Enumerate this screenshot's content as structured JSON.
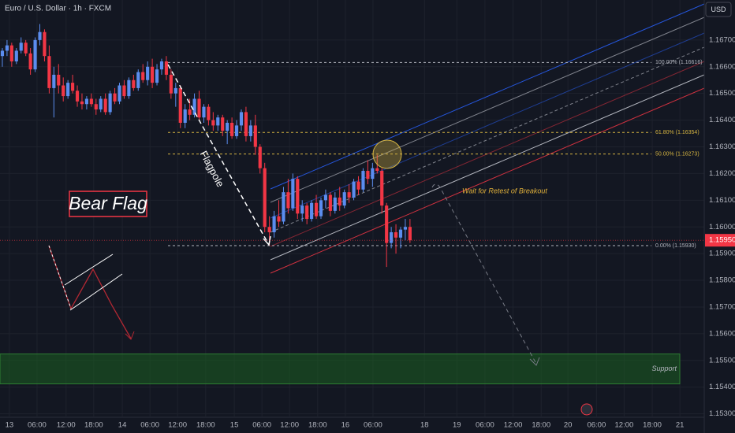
{
  "chart_data": {
    "type": "candlestick",
    "title": "Euro / U.S. Dollar · 1h · FXCM",
    "currency": "USD",
    "up_color": "#5b8def",
    "down_color": "#f23645",
    "grid": true,
    "ylim": [
      1.1529,
      1.1685
    ],
    "yticks": [
      {
        "value": 1.167,
        "label": "1.16700"
      },
      {
        "value": 1.166,
        "label": "1.16600"
      },
      {
        "value": 1.165,
        "label": "1.16500"
      },
      {
        "value": 1.164,
        "label": "1.16400"
      },
      {
        "value": 1.163,
        "label": "1.16300"
      },
      {
        "value": 1.162,
        "label": "1.16200"
      },
      {
        "value": 1.161,
        "label": "1.16100"
      },
      {
        "value": 1.16,
        "label": "1.16000"
      },
      {
        "value": 1.159,
        "label": "1.15900"
      },
      {
        "value": 1.158,
        "label": "1.15800"
      },
      {
        "value": 1.157,
        "label": "1.15700"
      },
      {
        "value": 1.156,
        "label": "1.15600"
      },
      {
        "value": 1.155,
        "label": "1.15500"
      },
      {
        "value": 1.154,
        "label": "1.15400"
      },
      {
        "value": 1.153,
        "label": "1.15300"
      }
    ],
    "xlim": [
      -0.5,
      149.8
    ],
    "xticks": [
      {
        "value": 1.5,
        "label": "13"
      },
      {
        "value": 7.4,
        "label": "06:00"
      },
      {
        "value": 13.6,
        "label": "12:00"
      },
      {
        "value": 19.5,
        "label": "18:00"
      },
      {
        "value": 25.6,
        "label": "14"
      },
      {
        "value": 31.5,
        "label": "06:00"
      },
      {
        "value": 37.4,
        "label": "12:00"
      },
      {
        "value": 43.4,
        "label": "18:00"
      },
      {
        "value": 49.5,
        "label": "15"
      },
      {
        "value": 55.4,
        "label": "06:00"
      },
      {
        "value": 61.3,
        "label": "12:00"
      },
      {
        "value": 67.3,
        "label": "18:00"
      },
      {
        "value": 73.2,
        "label": "16"
      },
      {
        "value": 79.1,
        "label": "06:00"
      },
      {
        "value": 90.1,
        "label": "18"
      },
      {
        "value": 97,
        "label": "19"
      },
      {
        "value": 103,
        "label": "06:00"
      },
      {
        "value": 109,
        "label": "12:00"
      },
      {
        "value": 115,
        "label": "18:00"
      },
      {
        "value": 120.7,
        "label": "20"
      },
      {
        "value": 126.8,
        "label": "06:00"
      },
      {
        "value": 132.7,
        "label": "12:00"
      },
      {
        "value": 138.7,
        "label": "18:00"
      },
      {
        "value": 144.6,
        "label": "21"
      }
    ],
    "last_price": {
      "value": 1.1595,
      "label": "1.15950"
    },
    "fib_levels": [
      {
        "value": 1.16616,
        "label": "100.00% (1.16616)",
        "color": "#b2b5be"
      },
      {
        "value": 1.16354,
        "label": "61.80% (1.16354)",
        "color": "#d4b341"
      },
      {
        "value": 1.16273,
        "label": "50.00% (1.16273)",
        "color": "#d4b341"
      },
      {
        "value": 1.1593,
        "label": "0.00% (1.15930)",
        "color": "#b2b5be"
      }
    ],
    "support_zone": {
      "label": "Support",
      "range": [
        1.15412,
        1.15524
      ]
    },
    "annotations": {
      "pattern": "Bear Flag",
      "pole": "Flagpole",
      "note": "Wait for Retest of Breakout"
    },
    "candles": [
      [
        1.1664,
        1.1667,
        1.166,
        1.1666
      ],
      [
        1.1666,
        1.167,
        1.1664,
        1.1668
      ],
      [
        1.1668,
        1.1669,
        1.166,
        1.1662
      ],
      [
        1.1662,
        1.1667,
        1.1661,
        1.1666
      ],
      [
        1.1666,
        1.1671,
        1.1665,
        1.1669
      ],
      [
        1.1669,
        1.167,
        1.1664,
        1.1665
      ],
      [
        1.1665,
        1.1667,
        1.1657,
        1.1659
      ],
      [
        1.1659,
        1.1671,
        1.1658,
        1.167
      ],
      [
        1.167,
        1.1676,
        1.1668,
        1.1673
      ],
      [
        1.1673,
        1.1674,
        1.1662,
        1.1664
      ],
      [
        1.1664,
        1.1668,
        1.165,
        1.1652
      ],
      [
        1.1652,
        1.166,
        1.1641,
        1.1657
      ],
      [
        1.1657,
        1.1661,
        1.165,
        1.1653
      ],
      [
        1.1653,
        1.1656,
        1.1647,
        1.1649
      ],
      [
        1.1649,
        1.1655,
        1.1648,
        1.1654
      ],
      [
        1.1654,
        1.1657,
        1.165,
        1.1651
      ],
      [
        1.1651,
        1.1653,
        1.1645,
        1.1647
      ],
      [
        1.1647,
        1.165,
        1.1644,
        1.1646
      ],
      [
        1.1646,
        1.1649,
        1.1644,
        1.1648
      ],
      [
        1.1648,
        1.165,
        1.1645,
        1.1646
      ],
      [
        1.1646,
        1.1648,
        1.1642,
        1.1644
      ],
      [
        1.1644,
        1.1649,
        1.1643,
        1.1648
      ],
      [
        1.1648,
        1.165,
        1.1642,
        1.1643
      ],
      [
        1.1643,
        1.1651,
        1.1642,
        1.165
      ],
      [
        1.165,
        1.1652,
        1.1646,
        1.1647
      ],
      [
        1.1647,
        1.1654,
        1.1646,
        1.1653
      ],
      [
        1.1653,
        1.1655,
        1.1648,
        1.1649
      ],
      [
        1.1649,
        1.1656,
        1.1648,
        1.1655
      ],
      [
        1.1655,
        1.1657,
        1.1651,
        1.1652
      ],
      [
        1.1652,
        1.1659,
        1.1651,
        1.1658
      ],
      [
        1.1658,
        1.1661,
        1.1654,
        1.1655
      ],
      [
        1.1655,
        1.1662,
        1.1653,
        1.166
      ],
      [
        1.166,
        1.1663,
        1.1652,
        1.1654
      ],
      [
        1.1654,
        1.1661,
        1.1653,
        1.1659
      ],
      [
        1.1659,
        1.1663,
        1.1657,
        1.1662
      ],
      [
        1.1662,
        1.1664,
        1.1655,
        1.1657
      ],
      [
        1.1657,
        1.1659,
        1.1648,
        1.165
      ],
      [
        1.165,
        1.1654,
        1.1645,
        1.1652
      ],
      [
        1.1652,
        1.1653,
        1.1637,
        1.1639
      ],
      [
        1.1639,
        1.1646,
        1.1637,
        1.1644
      ],
      [
        1.1644,
        1.1648,
        1.164,
        1.1642
      ],
      [
        1.1642,
        1.165,
        1.1641,
        1.1648
      ],
      [
        1.1648,
        1.1651,
        1.164,
        1.1641
      ],
      [
        1.1641,
        1.1646,
        1.1639,
        1.1645
      ],
      [
        1.1645,
        1.1646,
        1.1638,
        1.164
      ],
      [
        1.164,
        1.1643,
        1.1636,
        1.1638
      ],
      [
        1.1638,
        1.1642,
        1.1636,
        1.1641
      ],
      [
        1.1641,
        1.1642,
        1.1634,
        1.1636
      ],
      [
        1.1636,
        1.164,
        1.1631,
        1.1639
      ],
      [
        1.1639,
        1.1641,
        1.1633,
        1.1634
      ],
      [
        1.1634,
        1.164,
        1.1633,
        1.1638
      ],
      [
        1.1638,
        1.1644,
        1.1636,
        1.1643
      ],
      [
        1.1643,
        1.1645,
        1.1632,
        1.1634
      ],
      [
        1.1634,
        1.164,
        1.1632,
        1.1638
      ],
      [
        1.1638,
        1.1642,
        1.1627,
        1.163
      ],
      [
        1.163,
        1.1631,
        1.162,
        1.1622
      ],
      [
        1.1622,
        1.1624,
        1.1598,
        1.16
      ],
      [
        1.16,
        1.1604,
        1.1593,
        1.1598
      ],
      [
        1.1598,
        1.1606,
        1.1596,
        1.1604
      ],
      [
        1.1604,
        1.161,
        1.16,
        1.1602
      ],
      [
        1.1602,
        1.1615,
        1.1601,
        1.1613
      ],
      [
        1.1613,
        1.1618,
        1.1605,
        1.1607
      ],
      [
        1.1607,
        1.162,
        1.1606,
        1.1618
      ],
      [
        1.1618,
        1.1619,
        1.1603,
        1.1605
      ],
      [
        1.1605,
        1.161,
        1.1602,
        1.1608
      ],
      [
        1.1608,
        1.1609,
        1.1601,
        1.1603
      ],
      [
        1.1603,
        1.161,
        1.1602,
        1.1609
      ],
      [
        1.1609,
        1.1612,
        1.1603,
        1.1604
      ],
      [
        1.1604,
        1.1611,
        1.1603,
        1.161
      ],
      [
        1.161,
        1.1614,
        1.1607,
        1.1612
      ],
      [
        1.1612,
        1.1613,
        1.1604,
        1.1606
      ],
      [
        1.1606,
        1.1613,
        1.1605,
        1.1611
      ],
      [
        1.1611,
        1.1615,
        1.1606,
        1.1608
      ],
      [
        1.1608,
        1.1614,
        1.1607,
        1.1613
      ],
      [
        1.1613,
        1.1616,
        1.1609,
        1.1611
      ],
      [
        1.1611,
        1.1618,
        1.161,
        1.1617
      ],
      [
        1.1617,
        1.1619,
        1.1612,
        1.1614
      ],
      [
        1.1614,
        1.1622,
        1.1613,
        1.1621
      ],
      [
        1.1621,
        1.1625,
        1.1616,
        1.1618
      ],
      [
        1.1618,
        1.1624,
        1.1615,
        1.1622
      ],
      [
        1.1622,
        1.1627,
        1.162,
        1.1621
      ],
      [
        1.1621,
        1.1622,
        1.1605,
        1.1608
      ],
      [
        1.1608,
        1.1609,
        1.1585,
        1.1594
      ],
      [
        1.1594,
        1.16,
        1.1592,
        1.1598
      ],
      [
        1.1598,
        1.1601,
        1.159,
        1.1596
      ],
      [
        1.1596,
        1.16,
        1.1592,
        1.1599
      ],
      [
        1.1599,
        1.1603,
        1.1595,
        1.16
      ],
      [
        1.16,
        1.1603,
        1.1594,
        1.1595
      ]
    ]
  }
}
